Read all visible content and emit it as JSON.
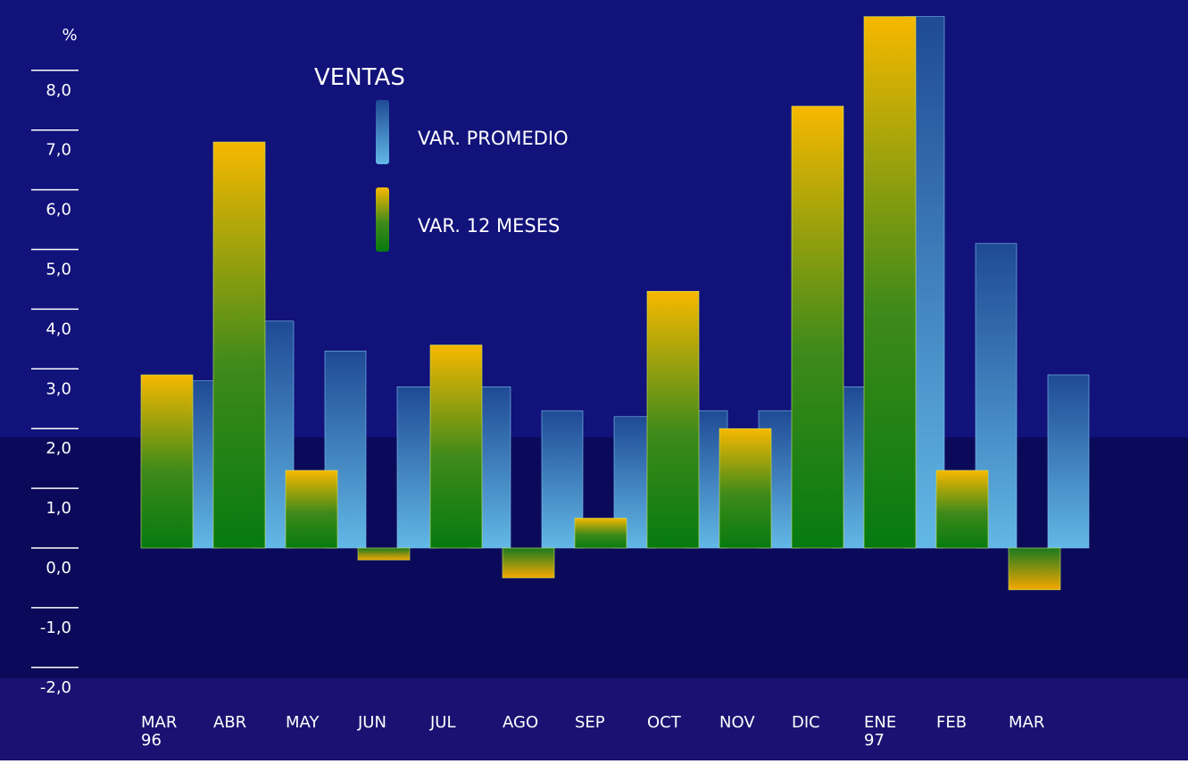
{
  "chart_data": {
    "type": "bar",
    "y_label": "%",
    "legend_title": "VENTAS",
    "categories": [
      "MAR\n96",
      "ABR",
      "MAY",
      "JUN",
      "JUL",
      "AGO",
      "SEP",
      "OCT",
      "NOV",
      "DIC",
      "ENE\n97",
      "FEB",
      "MAR"
    ],
    "series": [
      {
        "name": "VAR. PROMEDIO",
        "color": "#3f8fd0",
        "values": [
          2.8,
          3.8,
          3.3,
          2.7,
          2.7,
          2.3,
          2.2,
          2.3,
          2.3,
          2.7,
          8.9,
          5.1,
          2.9
        ]
      },
      {
        "name": "VAR. 12 MESES",
        "color": "#f2b400",
        "values": [
          2.9,
          6.8,
          1.3,
          -0.2,
          3.4,
          -0.5,
          0.5,
          4.3,
          2.0,
          7.4,
          8.9,
          1.3,
          -0.7
        ]
      }
    ],
    "ylim": [
      -2,
      9
    ],
    "yticks": [
      {
        "value": 8,
        "label": "8,0"
      },
      {
        "value": 7,
        "label": "7,0"
      },
      {
        "value": 6,
        "label": "6,0"
      },
      {
        "value": 5,
        "label": "5,0"
      },
      {
        "value": 4,
        "label": "4,0"
      },
      {
        "value": 3,
        "label": "3,0"
      },
      {
        "value": 2,
        "label": "2,0"
      },
      {
        "value": 1,
        "label": "1,0"
      },
      {
        "value": 0,
        "label": "0,0"
      },
      {
        "value": -1,
        "label": "-1,0"
      },
      {
        "value": -2,
        "label": "-2,0"
      }
    ]
  }
}
